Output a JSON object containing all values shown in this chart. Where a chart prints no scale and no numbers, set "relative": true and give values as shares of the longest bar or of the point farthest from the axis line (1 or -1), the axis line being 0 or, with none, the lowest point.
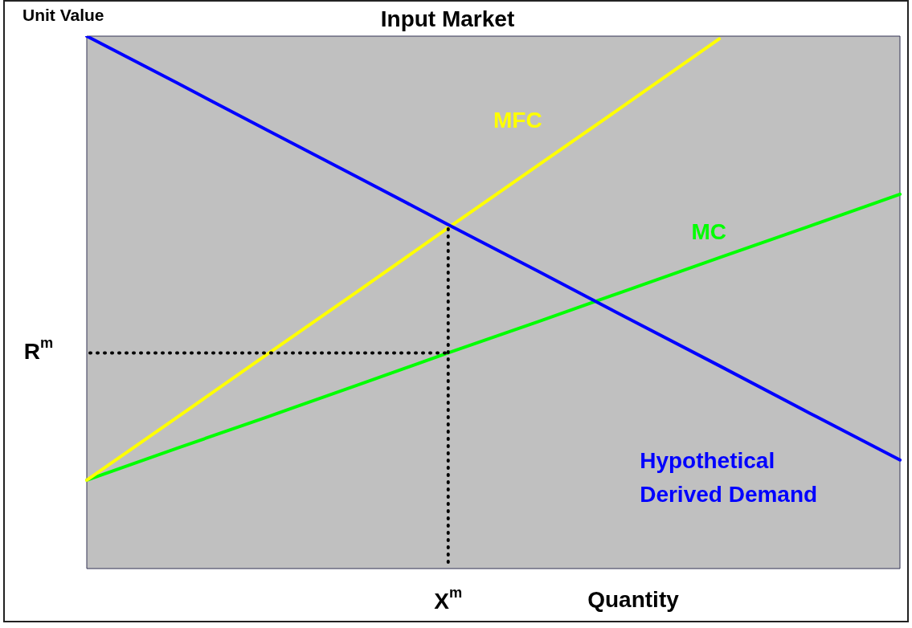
{
  "chart_data": {
    "type": "line",
    "title": "Input Market",
    "xlabel": "Quantity",
    "ylabel": "Unit Value",
    "relative": true,
    "legend": false,
    "marker": "none",
    "line_style": "solid",
    "categories": [
      null,
      null,
      null,
      null,
      null,
      null,
      null,
      null,
      null,
      null
    ],
    "series": [
      {
        "name": "Hypothetical Derived Demand",
        "color": "#0000ff",
        "values": [
          1,
          0.912,
          0.823,
          0.735,
          0.646,
          0.558,
          0.469,
          0.381,
          0.292,
          0.204
        ]
      },
      {
        "name": "MFC",
        "color": "#ffff00",
        "values": [
          0.166,
          0.284,
          0.403,
          0.521,
          0.64,
          0.758,
          0.876,
          0.995,
          null,
          null
        ]
      },
      {
        "name": "MC",
        "color": "#00ff00",
        "values": [
          0.166,
          0.226,
          0.285,
          0.345,
          0.405,
          0.464,
          0.524,
          0.584,
          0.643,
          0.703
        ]
      }
    ],
    "ref_lines": [
      {
        "axis": "y",
        "value": 0.405,
        "label": "R$^{m}$",
        "color": "#000000",
        "line_style": "dotted"
      },
      {
        "axis": "x",
        "label": "X$^{m}$",
        "color": "#000000",
        "line_style": "dotted"
      }
    ]
  }
}
